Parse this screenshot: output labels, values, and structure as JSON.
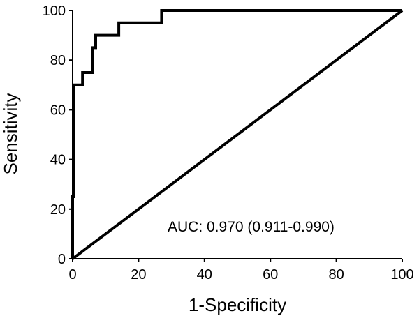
{
  "chart_data": {
    "type": "line",
    "title": "",
    "xlabel": "1-Specificity",
    "ylabel": "Sensitivity",
    "xlim": [
      0,
      100
    ],
    "ylim": [
      0,
      100
    ],
    "xticks": [
      "0",
      "20",
      "40",
      "60",
      "80",
      "100"
    ],
    "yticks": [
      "0",
      "20",
      "40",
      "60",
      "80",
      "100"
    ],
    "grid": false,
    "legend": "none",
    "annotation": "AUC: 0.970 (0.911-0.990)",
    "colors": {
      "line": "#000000",
      "axis": "#000000",
      "background": "#ffffff"
    },
    "series": [
      {
        "x": [
          0,
          0,
          0.3,
          0.3,
          3,
          3,
          6,
          6,
          7,
          7,
          8,
          8,
          14,
          14,
          27,
          27,
          100
        ],
        "y": [
          0,
          25,
          25,
          70,
          70,
          75,
          75,
          85,
          85,
          90,
          90,
          90,
          90,
          95,
          95,
          100,
          100
        ]
      },
      {
        "x": [
          0,
          100
        ],
        "y": [
          0,
          100
        ]
      }
    ]
  }
}
